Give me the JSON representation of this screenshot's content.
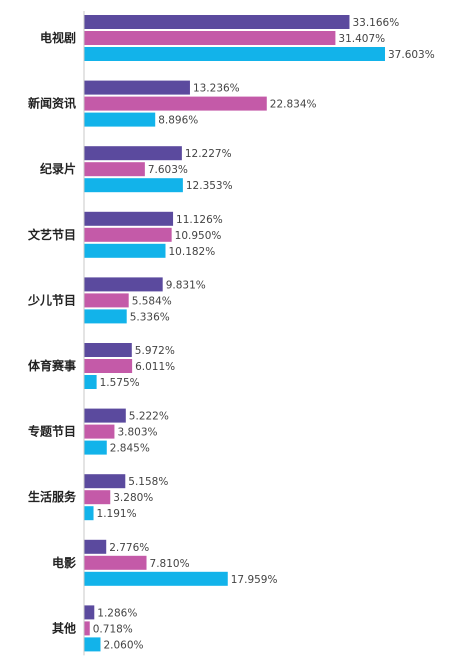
{
  "chart_data": {
    "type": "bar",
    "orientation": "horizontal",
    "categories": [
      "电视剧",
      "新闻资讯",
      "纪录片",
      "文艺节目",
      "少儿节目",
      "体育赛事",
      "专题节目",
      "生活服务",
      "电影",
      "其他"
    ],
    "series": [
      {
        "color": "#5b4a9e",
        "values": [
          33.166,
          13.236,
          12.227,
          11.126,
          9.831,
          5.972,
          5.222,
          5.158,
          2.776,
          1.286
        ],
        "labels": [
          "33.166%",
          "13.236%",
          "12.227%",
          "11.126%",
          "9.831%",
          "5.972%",
          "5.222%",
          "5.158%",
          "2.776%",
          "1.286%"
        ]
      },
      {
        "color": "#c45aa8",
        "values": [
          31.407,
          22.834,
          7.603,
          10.95,
          5.584,
          6.011,
          3.803,
          3.28,
          7.81,
          0.718
        ],
        "labels": [
          "31.407%",
          "22.834%",
          "7.603%",
          "10.950%",
          "5.584%",
          "6.011%",
          "3.803%",
          "3.280%",
          "7.810%",
          "0.718%"
        ]
      },
      {
        "color": "#12b3ea",
        "values": [
          37.603,
          8.896,
          12.353,
          10.182,
          5.336,
          1.575,
          2.845,
          1.191,
          17.959,
          2.06
        ],
        "labels": [
          "37.603%",
          "8.896%",
          "12.353%",
          "10.182%",
          "5.336%",
          "1.575%",
          "2.845%",
          "1.191%",
          "17.959%",
          "2.060%"
        ]
      }
    ],
    "xlim": [
      0,
      40
    ],
    "grid": false,
    "legend": "none"
  }
}
